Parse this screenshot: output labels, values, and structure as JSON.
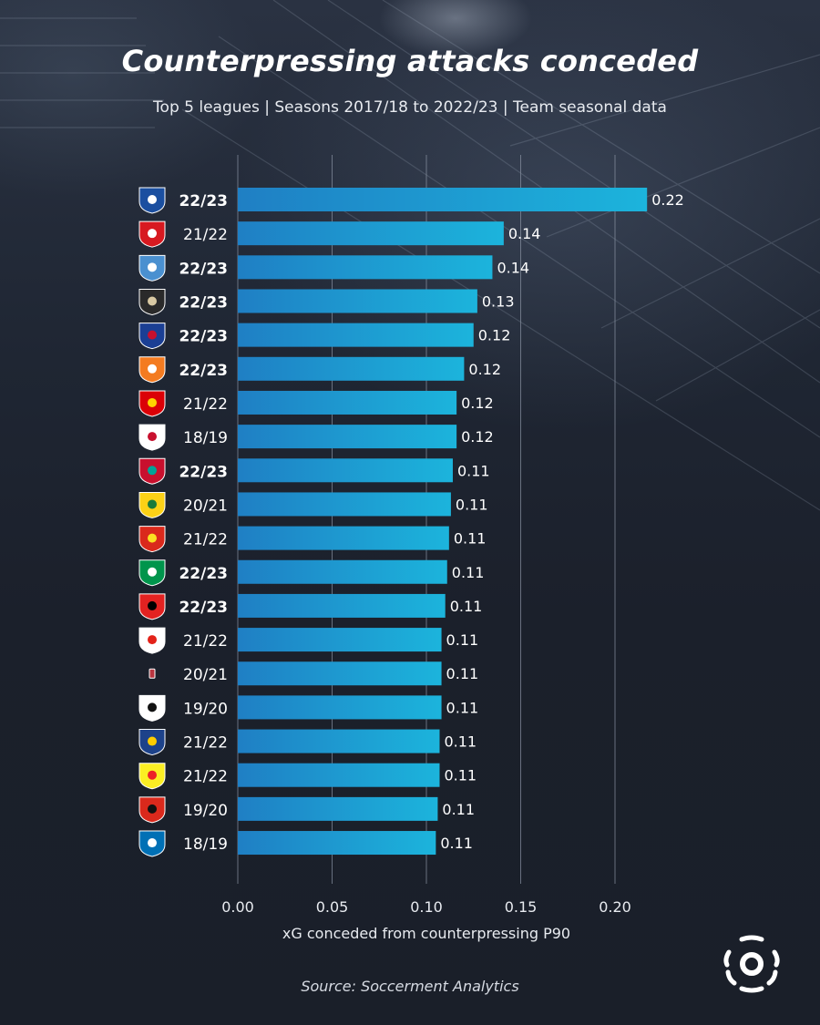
{
  "title": "Counterpressing attacks conceded",
  "subtitle": "Top 5 leagues | Seasons 2017/18 to 2022/23 | Team seasonal data",
  "source": "Source: Soccerment Analytics",
  "logo_icon": "soccerment-ball-logo-icon",
  "colors": {
    "background": "#1b202b",
    "bar_start": "#1f7fc4",
    "bar_end": "#1cb4dc",
    "gridline": "#8a93a3",
    "text": "#ffffff"
  },
  "chart_data": {
    "type": "bar",
    "orientation": "horizontal",
    "title": "Counterpressing attacks conceded",
    "subtitle": "Top 5 leagues | Seasons 2017/18 to 2022/23 | Team seasonal data",
    "xlabel": "xG conceded from counterpressing P90",
    "ylabel": "",
    "xlim": [
      0,
      0.2
    ],
    "xticks": [
      0.0,
      0.05,
      0.1,
      0.15,
      0.2
    ],
    "xtick_labels": [
      "0.00",
      "0.05",
      "0.10",
      "0.15",
      "0.20"
    ],
    "grid": "vertical",
    "legend": "none",
    "rows": [
      {
        "team_icon": "chelsea-crest-icon",
        "season": "22/23",
        "current_season": true,
        "value": 0.217,
        "label": "0.22"
      },
      {
        "team_icon": "southampton-crest-icon",
        "season": "21/22",
        "current_season": false,
        "value": 0.141,
        "label": "0.14"
      },
      {
        "team_icon": "auxerre-crest-icon",
        "season": "22/23",
        "current_season": true,
        "value": 0.135,
        "label": "0.14"
      },
      {
        "team_icon": "spezia-crest-icon",
        "season": "22/23",
        "current_season": true,
        "value": 0.127,
        "label": "0.13"
      },
      {
        "team_icon": "crystal-palace-crest-icon",
        "season": "22/23",
        "current_season": true,
        "value": 0.125,
        "label": "0.12"
      },
      {
        "team_icon": "lorient-crest-icon",
        "season": "22/23",
        "current_season": true,
        "value": 0.12,
        "label": "0.12"
      },
      {
        "team_icon": "arsenal-crest-icon",
        "season": "21/22",
        "current_season": false,
        "value": 0.116,
        "label": "0.12"
      },
      {
        "team_icon": "augsburg-crest-icon",
        "season": "18/19",
        "current_season": false,
        "value": 0.116,
        "label": "0.12"
      },
      {
        "team_icon": "liverpool-crest-icon",
        "season": "22/23",
        "current_season": true,
        "value": 0.114,
        "label": "0.11"
      },
      {
        "team_icon": "nantes-crest-icon",
        "season": "20/21",
        "current_season": false,
        "value": 0.113,
        "label": "0.11"
      },
      {
        "team_icon": "manchester-united-crest-icon",
        "season": "21/22",
        "current_season": false,
        "value": 0.112,
        "label": "0.11"
      },
      {
        "team_icon": "real-betis-crest-icon",
        "season": "22/23",
        "current_season": true,
        "value": 0.111,
        "label": "0.11"
      },
      {
        "team_icon": "leverkusen-crest-icon",
        "season": "22/23",
        "current_season": true,
        "value": 0.11,
        "label": "0.11"
      },
      {
        "team_icon": "stuttgart-crest-icon",
        "season": "21/22",
        "current_season": false,
        "value": 0.108,
        "label": "0.11"
      },
      {
        "team_icon": "crotone-crest-icon",
        "season": "20/21",
        "current_season": false,
        "value": 0.108,
        "label": "0.11"
      },
      {
        "team_icon": "freiburg-crest-icon",
        "season": "19/20",
        "current_season": false,
        "value": 0.108,
        "label": "0.11"
      },
      {
        "team_icon": "leeds-crest-icon",
        "season": "21/22",
        "current_season": false,
        "value": 0.107,
        "label": "0.11"
      },
      {
        "team_icon": "watford-crest-icon",
        "season": "21/22",
        "current_season": false,
        "value": 0.107,
        "label": "0.11"
      },
      {
        "team_icon": "bournemouth-crest-icon",
        "season": "19/20",
        "current_season": false,
        "value": 0.106,
        "label": "0.11"
      },
      {
        "team_icon": "cardiff-crest-icon",
        "season": "18/19",
        "current_season": false,
        "value": 0.105,
        "label": "0.11"
      }
    ]
  }
}
